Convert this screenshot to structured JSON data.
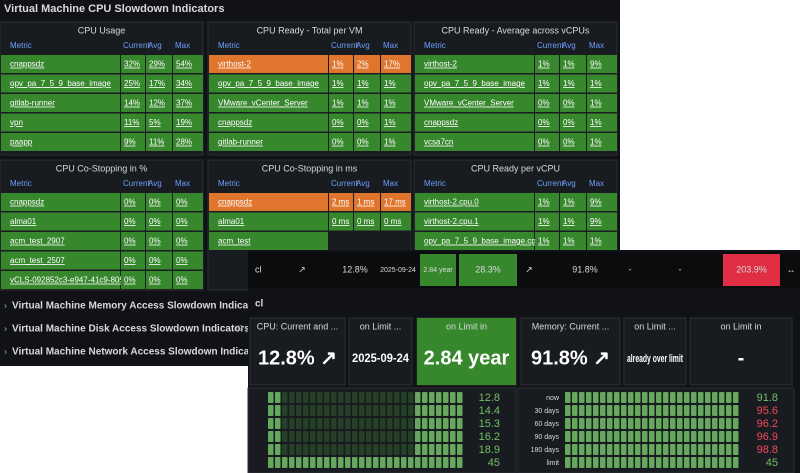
{
  "section_title": "Virtual Machine CPU Slowdown Indicators",
  "panels": [
    {
      "title": "CPU Usage",
      "columns": [
        "Metric",
        "Current",
        "Avg",
        "Max"
      ],
      "rows": [
        {
          "cells": [
            "cnappsdz",
            "32%",
            "29%",
            "54%"
          ]
        },
        {
          "cells": [
            "opv_pa_7_5_9_base_image",
            "25%",
            "17%",
            "34%"
          ]
        },
        {
          "cells": [
            "gitlab-runner",
            "14%",
            "12%",
            "37%"
          ]
        },
        {
          "cells": [
            "vpn",
            "11%",
            "5%",
            "19%"
          ]
        },
        {
          "cells": [
            "paapp",
            "9%",
            "11%",
            "28%"
          ]
        }
      ]
    },
    {
      "title": "CPU Ready - Total per VM",
      "columns": [
        "Metric",
        "Current",
        "Avg",
        "Max"
      ],
      "rows": [
        {
          "cells": [
            "virthost-2",
            "1%",
            "2%",
            "17%"
          ],
          "color": "#e0752d"
        },
        {
          "cells": [
            "opv_pa_7_5_9_base_image",
            "1%",
            "1%",
            "1%"
          ]
        },
        {
          "cells": [
            "VMware_vCenter_Server",
            "1%",
            "1%",
            "1%"
          ]
        },
        {
          "cells": [
            "cnappsdz",
            "0%",
            "0%",
            "1%"
          ]
        },
        {
          "cells": [
            "gitlab-runner",
            "0%",
            "0%",
            "1%"
          ]
        }
      ]
    },
    {
      "title": "CPU Ready - Average across vCPUs",
      "columns": [
        "Metric",
        "Current",
        "Avg",
        "Max"
      ],
      "rows": [
        {
          "cells": [
            "virthost-2",
            "1%",
            "1%",
            "9%"
          ]
        },
        {
          "cells": [
            "opv_pa_7_5_9_base_image",
            "1%",
            "1%",
            "1%"
          ]
        },
        {
          "cells": [
            "VMware_vCenter_Server",
            "0%",
            "0%",
            "1%"
          ]
        },
        {
          "cells": [
            "cnappsdz",
            "0%",
            "0%",
            "1%"
          ]
        },
        {
          "cells": [
            "vcsa7cn",
            "0%",
            "0%",
            "1%"
          ]
        }
      ]
    },
    {
      "title": "CPU Co-Stopping in %",
      "columns": [
        "Metric",
        "Current",
        "Avg",
        "Max"
      ],
      "rows": [
        {
          "cells": [
            "cnappsdz",
            "0%",
            "0%",
            "0%"
          ]
        },
        {
          "cells": [
            "alma01",
            "0%",
            "0%",
            "0%"
          ]
        },
        {
          "cells": [
            "acm_test_2907",
            "0%",
            "0%",
            "0%"
          ]
        },
        {
          "cells": [
            "acm_test_2507",
            "0%",
            "0%",
            "0%"
          ]
        },
        {
          "cells": [
            "vCLS-092852c3-e947-41c9-805c-",
            "0%",
            "0%",
            "0%"
          ]
        }
      ]
    },
    {
      "title": "CPU Co-Stopping in ms",
      "columns": [
        "Metric",
        "Current",
        "Avg",
        "Max"
      ],
      "rows": [
        {
          "cells": [
            "cnappsdz",
            "2 ms",
            "1 ms",
            "17 ms"
          ],
          "color": "#e0752d"
        },
        {
          "cells": [
            "alma01",
            "0 ms",
            "0 ms",
            "0 ms"
          ]
        },
        {
          "cells": [
            "acm_test"
          ]
        }
      ]
    },
    {
      "title": "CPU Ready per vCPU",
      "columns": [
        "Metric",
        "Current",
        "Avg",
        "Max"
      ],
      "rows": [
        {
          "cells": [
            "virthost-2.cpu.0",
            "1%",
            "1%",
            "9%"
          ]
        },
        {
          "cells": [
            "virthost-2.cpu.1",
            "1%",
            "1%",
            "9%"
          ]
        },
        {
          "cells": [
            "opv_pa_7_5_9_base_image.cpu.0",
            "1%",
            "1%",
            "1%"
          ]
        }
      ]
    }
  ],
  "collapsed_rows": [
    {
      "title": "Virtual Machine Memory Access Slowdown Indicators"
    },
    {
      "title": "Virtual Machine Disk Access Slowdown Indicators",
      "note": "(2 p"
    },
    {
      "title": "Virtual Machine Network Access Slowdown Indicators"
    }
  ],
  "overlay": {
    "table_row": [
      {
        "text": "cl"
      },
      {
        "text": "↗"
      },
      {
        "text": "12.8%"
      },
      {
        "text": "2025-09-24"
      },
      {
        "text": "2.84 year",
        "color": "#37872d"
      },
      {
        "text": "28.3%",
        "color": "#37872d"
      },
      {
        "text": "↗"
      },
      {
        "text": "91.8%"
      },
      {
        "text": "-"
      },
      {
        "text": "-"
      },
      {
        "text": "203.9%",
        "color": "#e02f44"
      },
      {
        "text": "↔"
      }
    ],
    "row_label": "cl",
    "stats": [
      {
        "title": "CPU: Current and ...",
        "value": "12.8% ↗"
      },
      {
        "title": "on Limit ...",
        "value": "2025-09-24"
      },
      {
        "title": "on Limit in",
        "value": "2.84 year",
        "color": "#37872d"
      },
      {
        "title": "Memory: Current ...",
        "value": "91.8% ↗"
      },
      {
        "title": "on Limit ...",
        "value": "already over limit"
      },
      {
        "title": "on Limit in",
        "value": "-"
      }
    ],
    "gauges": [
      {
        "values": [
          "12.8",
          "14.4",
          "15.3",
          "16.2",
          "18.9",
          "45"
        ],
        "value_colors": [
          "#73bf69",
          "#73bf69",
          "#73bf69",
          "#73bf69",
          "#73bf69",
          "#73bf69"
        ]
      },
      {
        "labels": [
          "now",
          "30 days",
          "60 days",
          "90 days",
          "180 days",
          "limit"
        ],
        "values": [
          "91.8",
          "95.6",
          "96.2",
          "96.9",
          "98.8",
          "45"
        ],
        "value_colors": [
          "#73bf69",
          "#f2495c",
          "#f2495c",
          "#f2495c",
          "#f2495c",
          "#73bf69"
        ]
      }
    ]
  }
}
